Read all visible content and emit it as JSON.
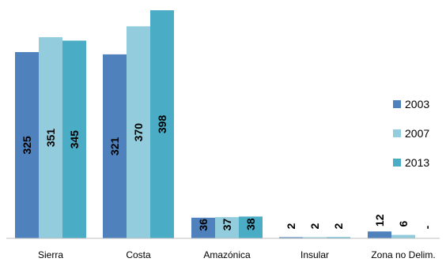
{
  "chart_data": {
    "type": "bar",
    "categories": [
      "Sierra",
      "Costa",
      "Amazónica",
      "Insular",
      "Zona no Delim."
    ],
    "series": [
      {
        "name": "2003",
        "color": "#4f81bd",
        "values": [
          325,
          321,
          36,
          2,
          12
        ],
        "labels": [
          "325",
          "321",
          "36",
          "2",
          "12"
        ]
      },
      {
        "name": "2007",
        "color": "#93cddd",
        "values": [
          351,
          370,
          37,
          2,
          6
        ],
        "labels": [
          "351",
          "370",
          "37",
          "2",
          "6"
        ]
      },
      {
        "name": "2013",
        "color": "#4bacc6",
        "values": [
          345,
          398,
          38,
          2,
          0
        ],
        "labels": [
          "345",
          "398",
          "38",
          "2",
          "-"
        ]
      }
    ],
    "ylim": [
      0,
      398
    ],
    "grid": false,
    "legend_position": "right"
  }
}
